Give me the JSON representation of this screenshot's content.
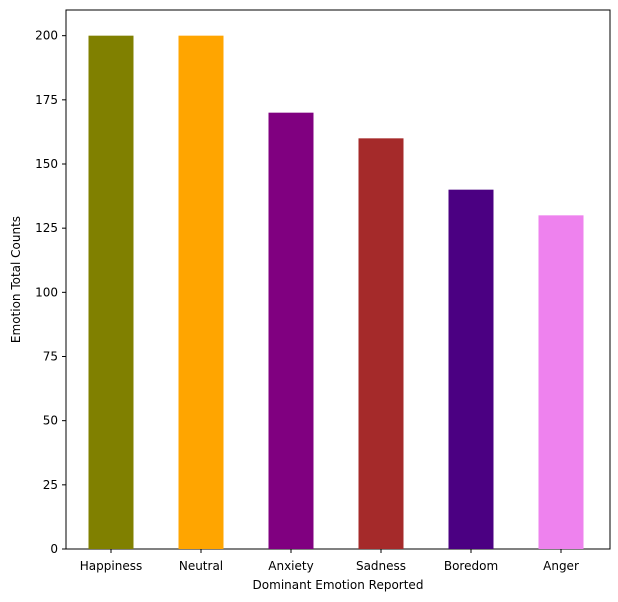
{
  "chart_data": {
    "type": "bar",
    "categories": [
      "Happiness",
      "Neutral",
      "Anxiety",
      "Sadness",
      "Boredom",
      "Anger"
    ],
    "values": [
      200,
      200,
      170,
      160,
      140,
      130
    ],
    "colors": [
      "#808000",
      "#ffa500",
      "#800080",
      "#a52a2a",
      "#4b0082",
      "#ee82ee"
    ],
    "xlabel": "Dominant Emotion Reported",
    "ylabel": "Emotion Total Counts",
    "ylim": [
      0,
      210
    ],
    "yticks": [
      0,
      25,
      50,
      75,
      100,
      125,
      150,
      175,
      200
    ],
    "grid": false
  }
}
